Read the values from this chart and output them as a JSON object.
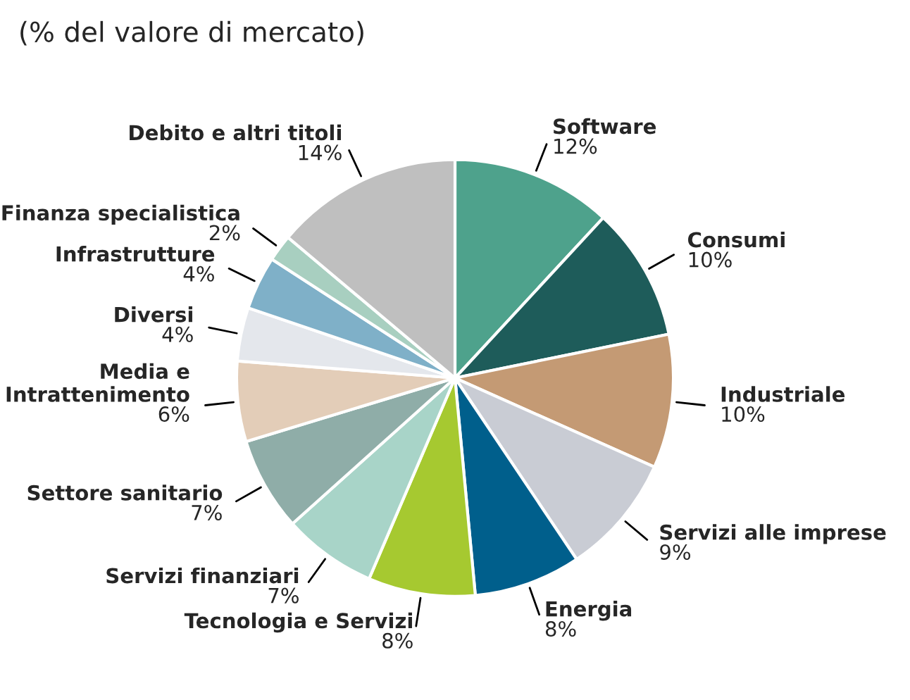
{
  "chart_data": {
    "type": "pie",
    "title": "(% del valore di mercato)",
    "categories": [
      "Software",
      "Consumi",
      "Industriale",
      "Servizi alle imprese",
      "Energia",
      "Tecnologia e Servizi",
      "Servizi finanziari",
      "Settore sanitario",
      "Media e Intrattenimento",
      "Diversi",
      "Infrastrutture",
      "Finanza specialistica",
      "Debito e altri titoli"
    ],
    "values": [
      12,
      10,
      10,
      9,
      8,
      8,
      7,
      7,
      6,
      4,
      4,
      2,
      14
    ],
    "value_labels": [
      "12%",
      "10%",
      "10%",
      "9%",
      "8%",
      "8%",
      "7%",
      "7%",
      "6%",
      "4%",
      "4%",
      "2%",
      "14%"
    ],
    "colors": [
      "#4ea28c",
      "#1e5c5a",
      "#c49a74",
      "#c9ccd4",
      "#005f8c",
      "#a6c930",
      "#a8d4c8",
      "#8fada8",
      "#e3cdb8",
      "#e4e7ec",
      "#7fb0c8",
      "#a8cfc0",
      "#bfbfbf"
    ],
    "legend": false
  }
}
